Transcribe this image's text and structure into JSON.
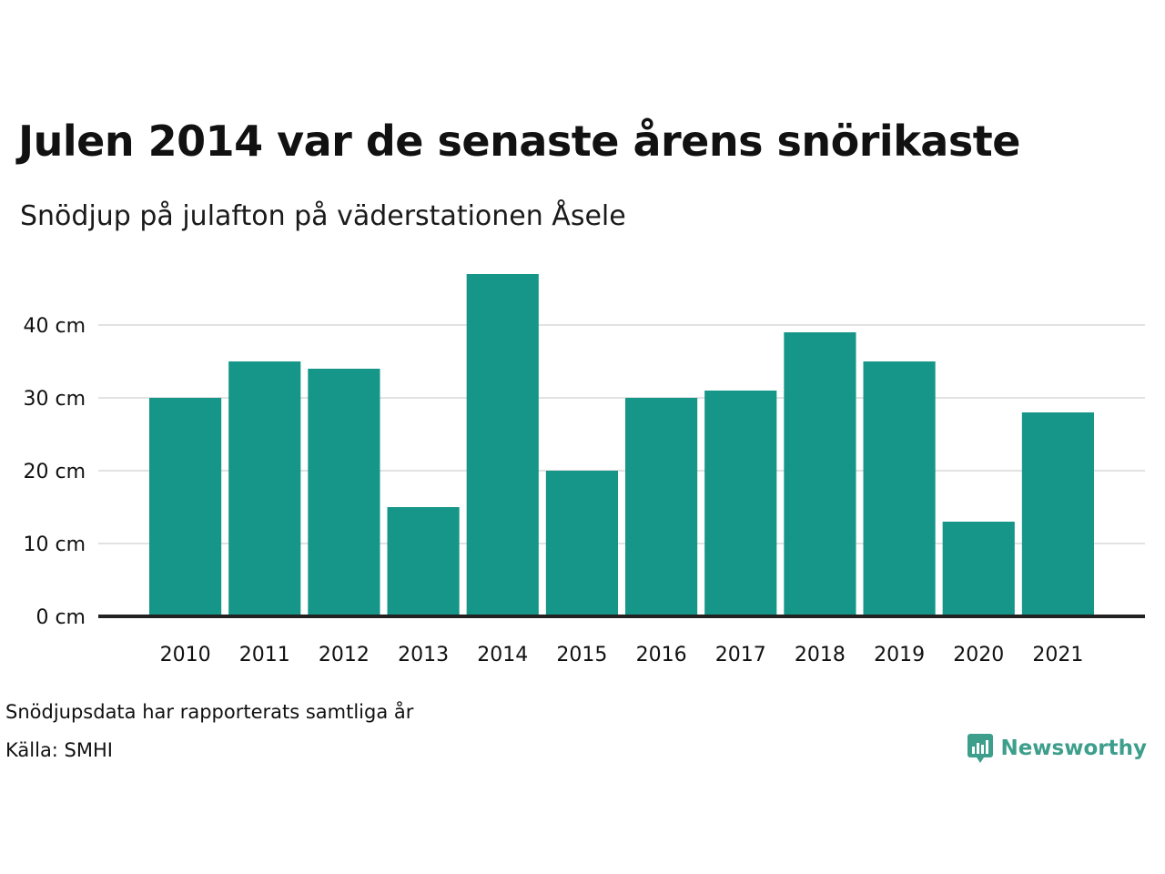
{
  "header": {
    "title": "Julen 2014 var de senaste årens snörikaste",
    "subtitle": "Snödjup på julafton på väderstationen Åsele"
  },
  "footer": {
    "note": "Snödjupsdata har rapporterats samtliga år",
    "source": "Källa: SMHI",
    "brand": "Newsworthy",
    "brand_icon": "newsworthy-logo-icon"
  },
  "colors": {
    "bar": "#159688",
    "grid": "#e2e2e2",
    "baseline": "#222222",
    "brand": "#3d9e8c"
  },
  "chart_data": {
    "type": "bar",
    "title": "Julen 2014 var de senaste årens snörikaste",
    "subtitle": "Snödjup på julafton på väderstationen Åsele",
    "xlabel": "",
    "ylabel": "",
    "categories": [
      "2010",
      "2011",
      "2012",
      "2013",
      "2014",
      "2015",
      "2016",
      "2017",
      "2018",
      "2019",
      "2020",
      "2021"
    ],
    "values": [
      30,
      35,
      34,
      15,
      47,
      20,
      30,
      31,
      39,
      35,
      13,
      28
    ],
    "unit": "cm",
    "yticks": [
      "0 cm",
      "10 cm",
      "20 cm",
      "30 cm",
      "40 cm"
    ],
    "ytick_values": [
      0,
      10,
      20,
      30,
      40
    ],
    "ylim": [
      0,
      50
    ],
    "grid": true
  }
}
